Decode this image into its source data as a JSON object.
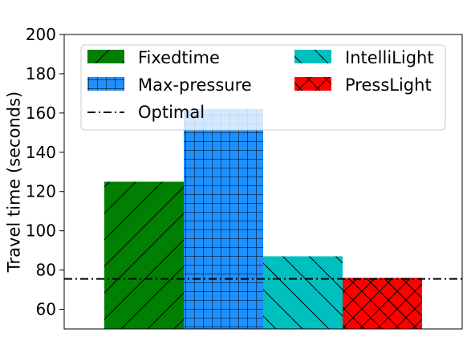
{
  "chart_data": {
    "type": "bar",
    "title": "",
    "xlabel": "",
    "ylabel": "Travel time (seconds)",
    "ylim": [
      50,
      200
    ],
    "yticks": [
      60,
      80,
      100,
      120,
      140,
      160,
      180,
      200
    ],
    "grid": false,
    "legend_position": "top",
    "series": [
      {
        "name": "Fixedtime",
        "value": 125,
        "color": "#008000",
        "hatch": "diagonal"
      },
      {
        "name": "Max-pressure",
        "value": 162,
        "color": "#1e90ff",
        "hatch": "grid"
      },
      {
        "name": "IntelliLight",
        "value": 87,
        "color": "#00bfbf",
        "hatch": "backslash"
      },
      {
        "name": "PressLight",
        "value": 76,
        "color": "#ff0000",
        "hatch": "cross"
      }
    ],
    "reference_line": {
      "name": "Optimal",
      "value": 75.5,
      "style": "dash-dot",
      "color": "#000000"
    }
  }
}
